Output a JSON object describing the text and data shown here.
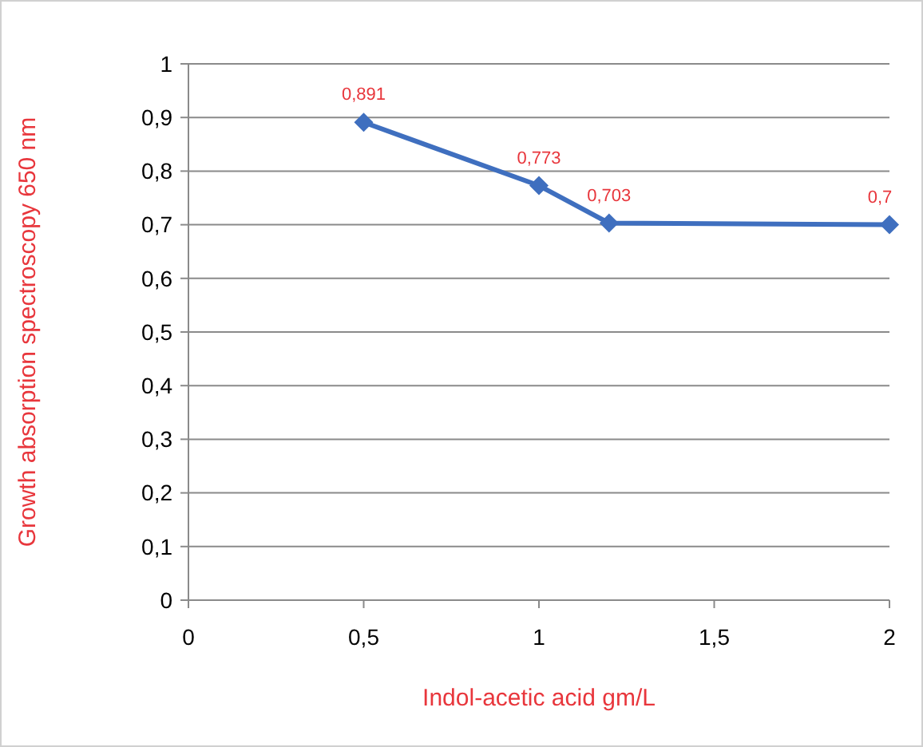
{
  "chart_data": {
    "type": "line",
    "xlabel": "Indol-acetic acid gm/L",
    "ylabel": "Growth absorption spectroscopy  650 nm",
    "x": [
      0.5,
      1,
      1.2,
      2
    ],
    "series": [
      {
        "color": "#3f6fbf",
        "values": [
          0.891,
          0.773,
          0.703,
          0.7
        ],
        "value_labels": [
          "0,891",
          "0,773",
          "0,703",
          "0,7"
        ]
      }
    ],
    "xlim": [
      0,
      2
    ],
    "xticks": [
      {
        "value": 0,
        "label": "0"
      },
      {
        "value": 0.5,
        "label": "0,5"
      },
      {
        "value": 1,
        "label": "1"
      },
      {
        "value": 1.5,
        "label": "1,5"
      },
      {
        "value": 2,
        "label": "2"
      }
    ],
    "ylim": [
      0,
      1
    ],
    "yticks": [
      {
        "value": 0,
        "label": "0"
      },
      {
        "value": 0.1,
        "label": "0,1"
      },
      {
        "value": 0.2,
        "label": "0,2"
      },
      {
        "value": 0.3,
        "label": "0,3"
      },
      {
        "value": 0.4,
        "label": "0,4"
      },
      {
        "value": 0.5,
        "label": "0,5"
      },
      {
        "value": 0.6,
        "label": "0,6"
      },
      {
        "value": 0.7,
        "label": "0,7"
      },
      {
        "value": 0.8,
        "label": "0,8"
      },
      {
        "value": 0.9,
        "label": "0,9"
      },
      {
        "value": 1,
        "label": "1"
      }
    ],
    "grid": "y",
    "marker": "diamond",
    "line_style": "solid"
  }
}
